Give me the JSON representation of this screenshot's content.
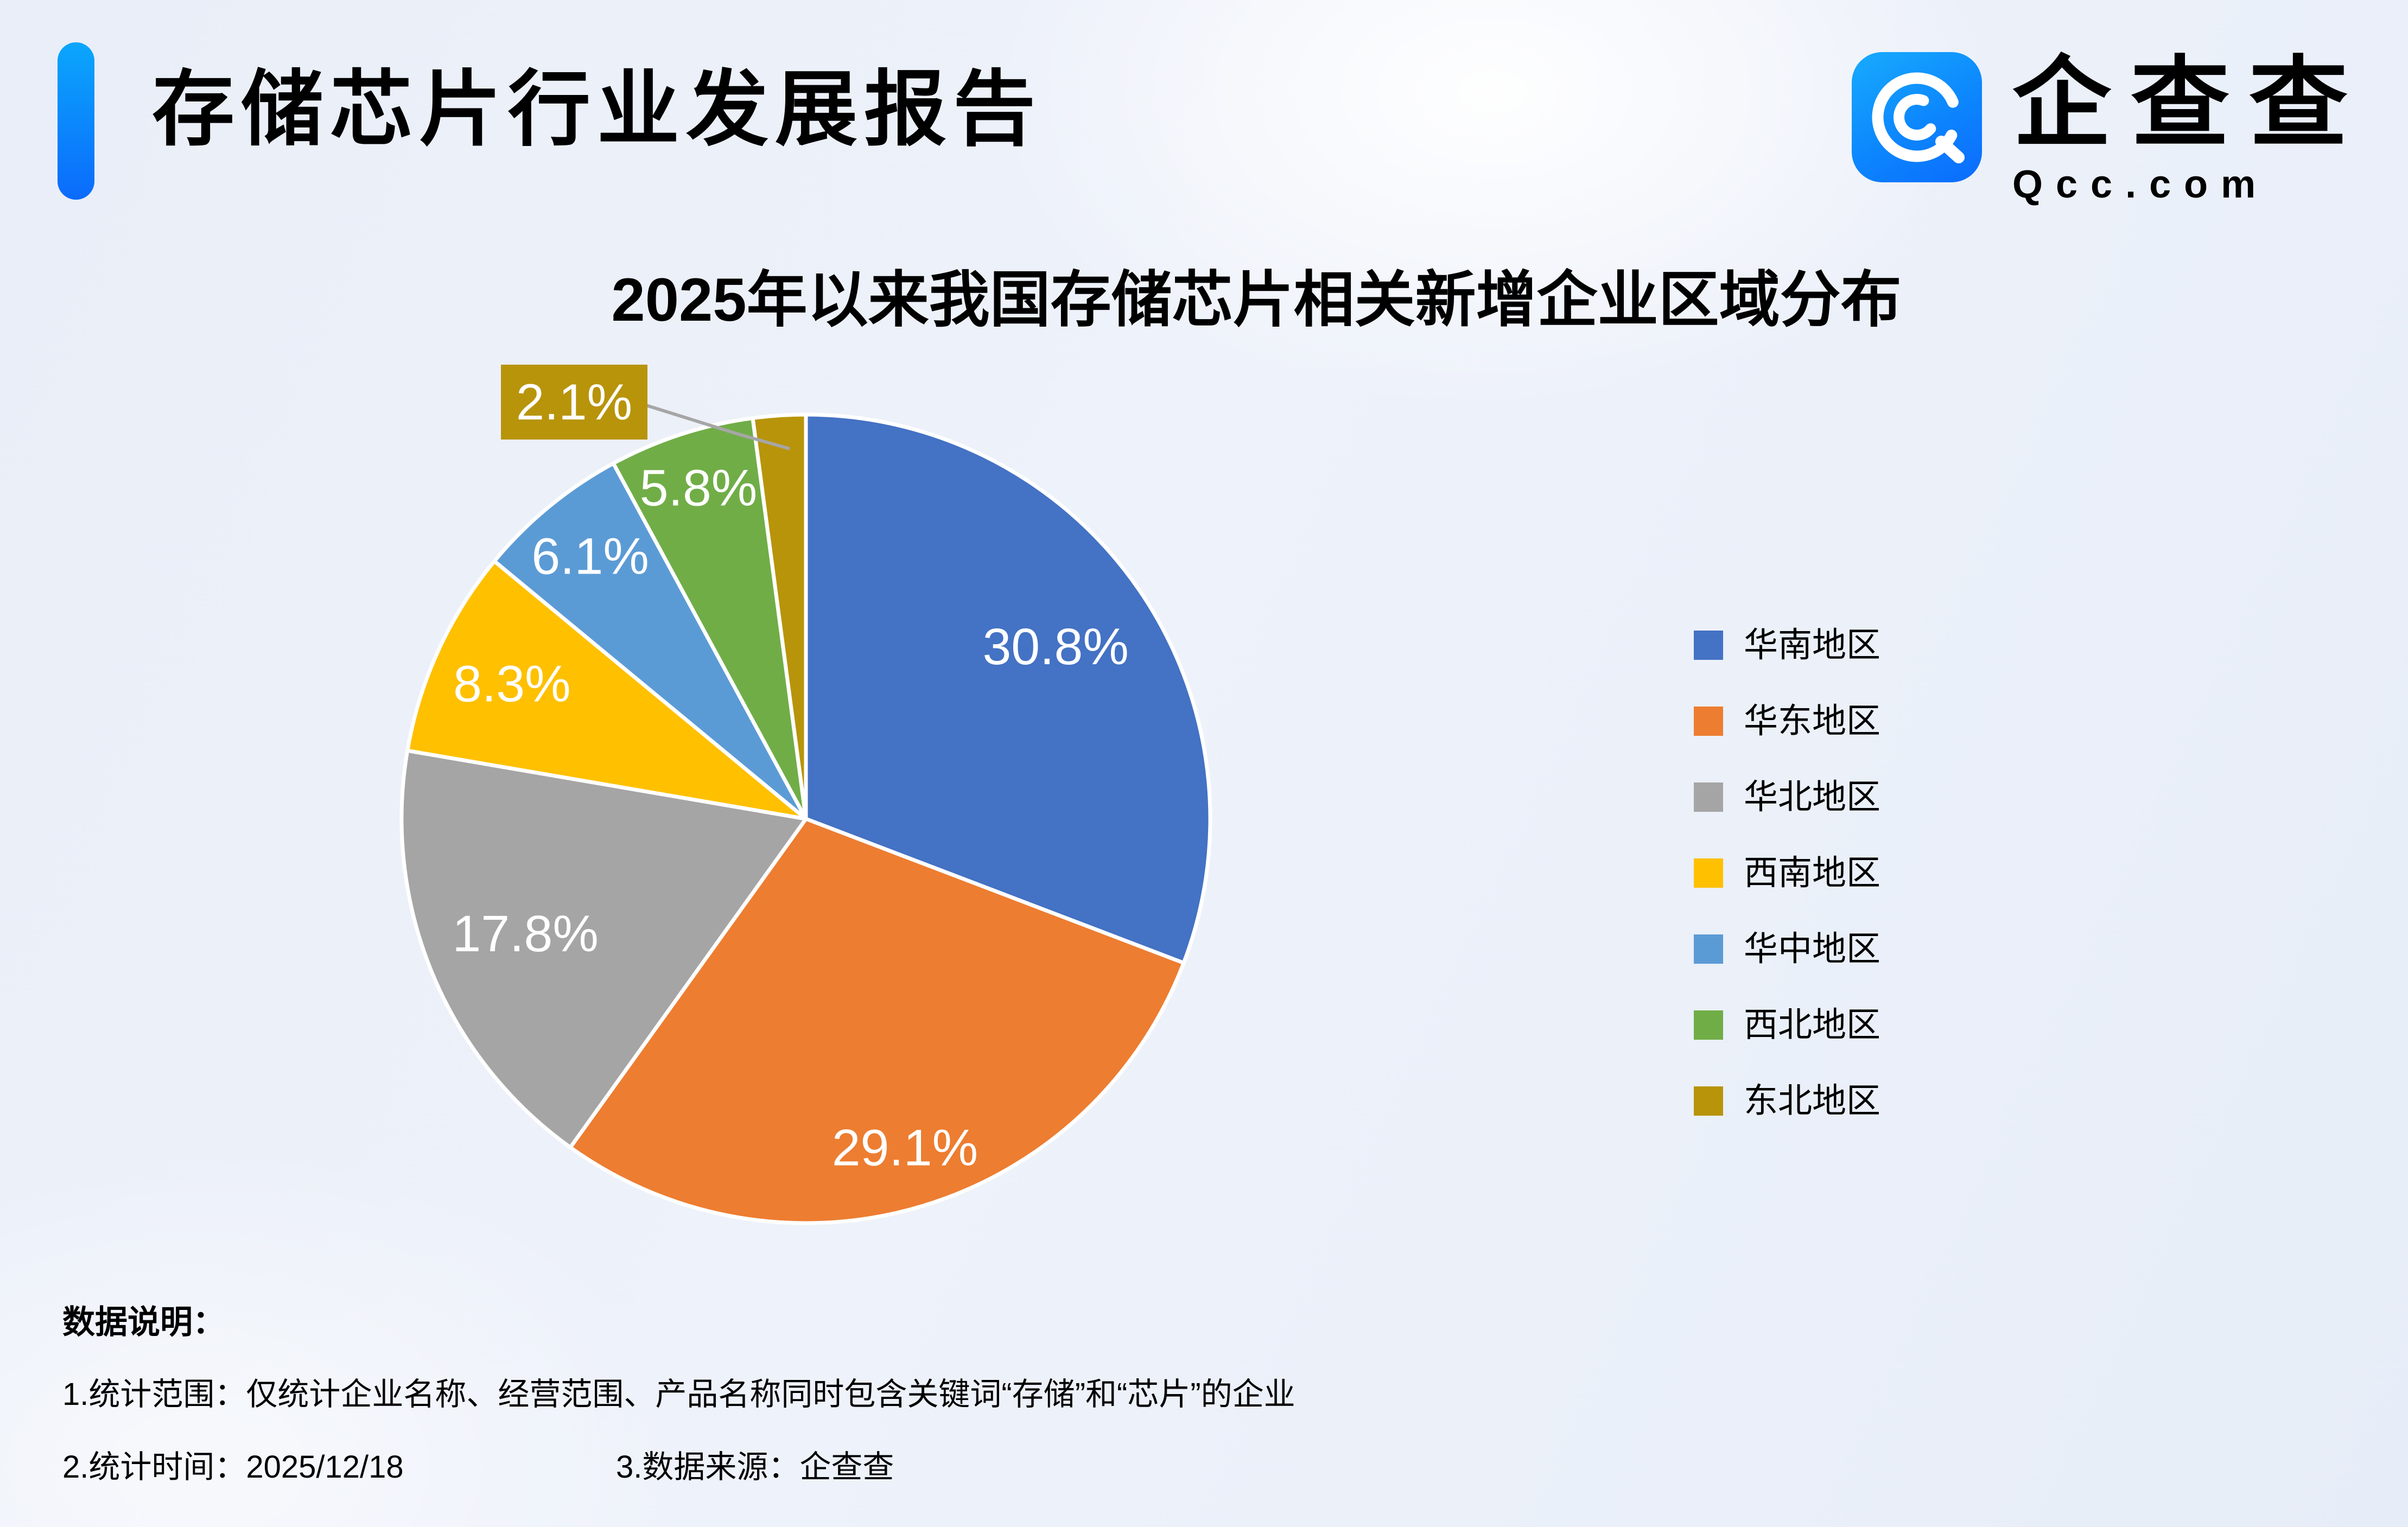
{
  "header": {
    "title": "存储芯片行业发展报告",
    "accent_color_top": "#0ba6fc",
    "accent_color_bottom": "#0b6bfc"
  },
  "logo": {
    "brand": "企查查",
    "domain": "Qcc.com",
    "icon": "qcc-logo-icon",
    "icon_color_top": "#18abfd",
    "icon_color_bottom": "#0b6bfd"
  },
  "chart_data": {
    "type": "pie",
    "title": "2025年以来我国存储芯片相关新增企业区域分布",
    "unit": "%",
    "start_angle_deg": 0,
    "direction": "clockwise",
    "legend_position": "right",
    "label_color": "#ffffff",
    "slice_border_color": "#ffffff",
    "slices": [
      {
        "label": "华南地区",
        "value": 30.8,
        "display": "30.8%",
        "color": "#4472C4",
        "label_r": 0.75
      },
      {
        "label": "华东地区",
        "value": 29.1,
        "display": "29.1%",
        "color": "#ED7D31",
        "label_r": 0.85
      },
      {
        "label": "华北地区",
        "value": 17.8,
        "display": "17.8%",
        "color": "#A5A5A5",
        "label_r": 0.75
      },
      {
        "label": "西南地区",
        "value": 8.3,
        "display": "8.3%",
        "color": "#FFC000",
        "label_r": 0.8
      },
      {
        "label": "华中地区",
        "value": 6.1,
        "display": "6.1%",
        "color": "#5B9BD5",
        "label_r": 0.84
      },
      {
        "label": "西北地区",
        "value": 5.8,
        "display": "5.8%",
        "color": "#70AD47",
        "label_r": 0.86
      },
      {
        "label": "东北地区",
        "value": 2.1,
        "display": "2.1%",
        "color": "#B8940A",
        "label_mode": "callout"
      }
    ],
    "callout": {
      "text": "2.1%",
      "box_color": "#B8940A",
      "line_color": "#A6A6A6"
    }
  },
  "notes": {
    "heading": "数据说明：",
    "line1": "1.统计范围：仅统计企业名称、经营范围、产品名称同时包含关键词“存储”和“芯片”的企业",
    "line2_part1": "2.统计时间：2025/12/18",
    "line2_part2": "3.数据来源：企查查"
  }
}
